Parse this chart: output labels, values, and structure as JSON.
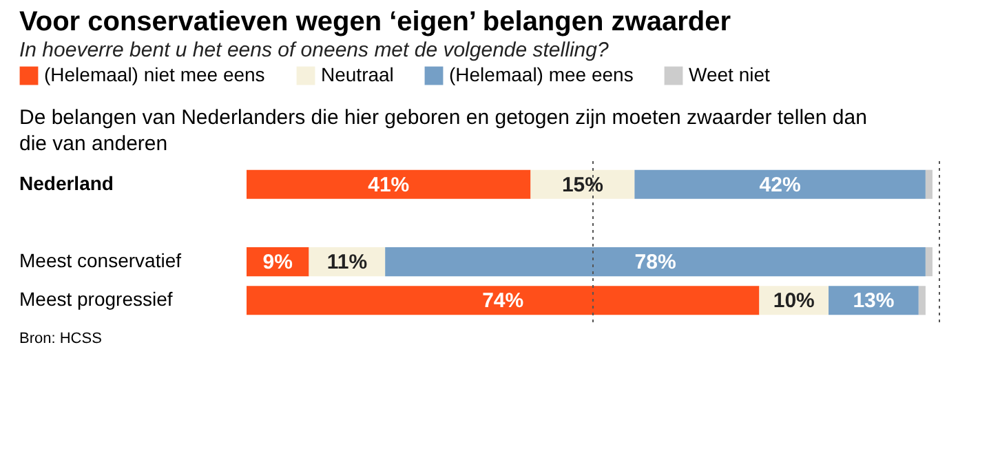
{
  "chart_data": {
    "type": "bar",
    "orientation": "horizontal",
    "stacked": true,
    "title": "Voor conservatieven wegen ‘eigen’ belangen zwaarder",
    "subtitle": "In hoeverre bent u het eens of oneens met de volgende stelling?",
    "annotations": [
      "De belangen van Nederlanders die hier geboren en getogen zijn moeten zwaarder tellen dan die van anderen",
      "Bron: HCSS"
    ],
    "categories": [
      "Nederland",
      "Meest conservatief",
      "Meest progressief"
    ],
    "series": [
      {
        "name": "(Helemaal) niet mee eens",
        "color": "#ff4f1a",
        "values": [
          41,
          9,
          74
        ],
        "value_labels": [
          "41%",
          "9%",
          "74%"
        ]
      },
      {
        "name": "Neutraal",
        "color": "#f6f1dc",
        "values": [
          15,
          11,
          10
        ],
        "value_labels": [
          "15%",
          "11%",
          "10%"
        ]
      },
      {
        "name": "(Helemaal) mee eens",
        "color": "#759fc6",
        "values": [
          42,
          78,
          13
        ],
        "value_labels": [
          "42%",
          "78%",
          "13%"
        ]
      },
      {
        "name": "Weet niet",
        "color": "#cccccc",
        "values": [
          1,
          1,
          1
        ],
        "value_labels": [
          null,
          null,
          null
        ]
      }
    ],
    "xlim": [
      0,
      100
    ],
    "tick_labels": false,
    "grid": false,
    "legend": "top left",
    "ref_lines": [
      {
        "axis": "x",
        "value": 50,
        "line_style": "dotted"
      },
      {
        "axis": "x",
        "value": 100,
        "line_style": "dotted"
      }
    ]
  }
}
